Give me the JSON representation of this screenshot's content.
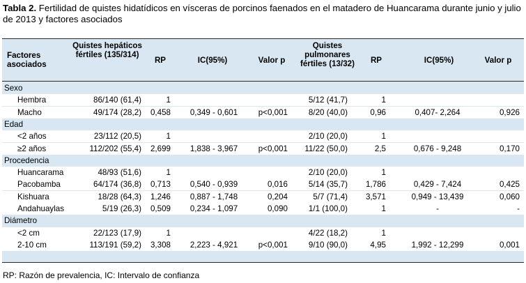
{
  "title": {
    "label": "Tabla 2.",
    "text": " Fertilidad de quistes hidatídicos en vísceras de porcinos faenados en el matadero de Huancarama durante junio y julio de 2013 y factores asociados"
  },
  "headers": {
    "factor": "Factores asociados",
    "hep": "Quistes hepáticos fértiles (135/314)",
    "rp1": "RP",
    "ic1": "IC(95%)",
    "p1": "Valor p",
    "pul": "Quistes pulmonares fértiles (13/32)",
    "rp2": "RP",
    "ic2": "IC(95%)",
    "p2": "Valor p"
  },
  "rows": [
    {
      "type": "group",
      "label": "Sexo"
    },
    {
      "type": "data",
      "label": "Hembra",
      "hep": "86/140 (61,4)",
      "rp1": "1",
      "ic1": "",
      "p1": "",
      "pul": "5/12 (41,7)",
      "rp2": "1",
      "ic2": "",
      "p2": ""
    },
    {
      "type": "data",
      "label": "Macho",
      "hep": "49/174 (28,2)",
      "rp1": "0,458",
      "ic1": "0,349 - 0,601",
      "p1": "p<0,001",
      "pul": "8/20 (40,0)",
      "rp2": "0,96",
      "ic2": "0,407- 2,264",
      "p2": "0,926"
    },
    {
      "type": "group",
      "label": "Edad"
    },
    {
      "type": "data",
      "label": "<2 años",
      "hep": "23/112 (20,5)",
      "rp1": "1",
      "ic1": "",
      "p1": "",
      "pul": "2/10 (20,0)",
      "rp2": "1",
      "ic2": "",
      "p2": ""
    },
    {
      "type": "data",
      "label": "≥2 años",
      "hep": "112/202 (55,4)",
      "rp1": "2,699",
      "ic1": "1,838 - 3,967",
      "p1": "p<0,001",
      "pul": "11/22 (50,0)",
      "rp2": "2,5",
      "ic2": "0,676 - 9,248",
      "p2": "0,170"
    },
    {
      "type": "group",
      "label": "Procedencia"
    },
    {
      "type": "data",
      "label": "Huancarama",
      "hep": "48/93 (51,6)",
      "rp1": "1",
      "ic1": "",
      "p1": "",
      "pul": "2/10 (20,0)",
      "rp2": "1",
      "ic2": "",
      "p2": ""
    },
    {
      "type": "data",
      "label": "Pacobamba",
      "hep": "64/174 (36,8)",
      "rp1": "0,713",
      "ic1": "0,540 - 0,939",
      "p1": "0,016",
      "pul": "5/14 (35,7)",
      "rp2": "1,786",
      "ic2": "0,429 - 7,424",
      "p2": "0,425"
    },
    {
      "type": "data",
      "label": "Kishuara",
      "hep": "18/28 (64,3)",
      "rp1": "1,246",
      "ic1": "0,887 - 1,748",
      "p1": "0,204",
      "pul": "5/7 (71,4)",
      "rp2": "3,571",
      "ic2": "0,949 - 13,439",
      "p2": "0,060"
    },
    {
      "type": "data",
      "label": "Andahuaylas",
      "hep": "5/19 (26,3)",
      "rp1": "0,509",
      "ic1": "0,234 - 1,097",
      "p1": "0,090",
      "pul": "1/1 (100,0)",
      "rp2": "1",
      "ic2": "-",
      "p2": "-"
    },
    {
      "type": "group",
      "label": "Diámetro"
    },
    {
      "type": "data",
      "label": "<2 cm",
      "hep": "22/123 (17,9)",
      "rp1": "1",
      "ic1": "",
      "p1": "",
      "pul": "4/22 (18,2)",
      "rp2": "1",
      "ic2": "",
      "p2": ""
    },
    {
      "type": "data",
      "label": "2-10 cm",
      "hep": "113/191 (59,2)",
      "rp1": "3,308",
      "ic1": "2,223 - 4,921",
      "p1": "p<0,001",
      "pul": "9/10 (90,0)",
      "rp2": "4,95",
      "ic2": "1,992 - 12,299",
      "p2": "0,001"
    }
  ],
  "footnote": "RP: Razón de prevalencia, IC: Intervalo de confianza",
  "colors": {
    "table_bg": "#d8e7f1",
    "white_row": "#ffffff",
    "rule": "#2a2a2a"
  }
}
